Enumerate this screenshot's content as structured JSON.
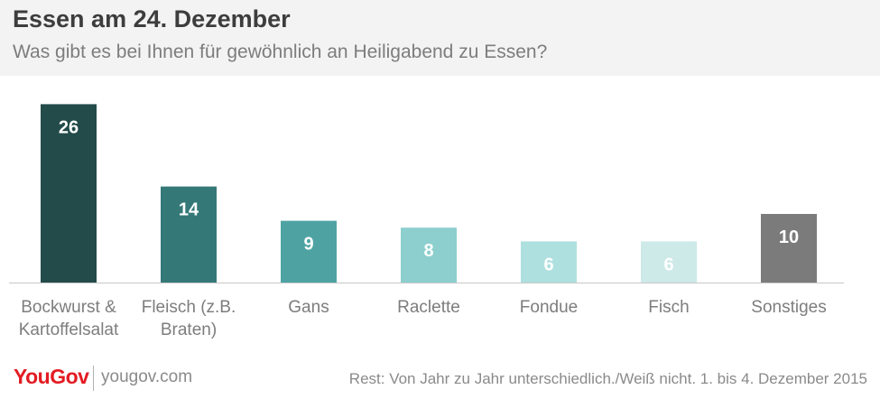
{
  "header": {
    "title": "Essen am 24. Dezember",
    "subtitle": "Was gibt es bei Ihnen für gewöhnlich an Heiligabend zu Essen?"
  },
  "chart_data": {
    "type": "bar",
    "categories": [
      [
        "Bockwurst &",
        "Kartoffelsalat"
      ],
      [
        "Fleisch (z.B.",
        "Braten)"
      ],
      [
        "Gans"
      ],
      [
        "Raclette"
      ],
      [
        "Fondue"
      ],
      [
        "Fisch"
      ],
      [
        "Sonstiges"
      ]
    ],
    "values": [
      26,
      14,
      9,
      8,
      6,
      6,
      10
    ],
    "colors": [
      "#224b4a",
      "#357878",
      "#4ea3a2",
      "#8ccfce",
      "#aee0df",
      "#cde9e8",
      "#7b7b7b"
    ],
    "label_colors": [
      "#ffffff",
      "#ffffff",
      "#ffffff",
      "#ffffff",
      "#ffffff",
      "#ffffff",
      "#ffffff"
    ],
    "title": "Essen am 24. Dezember",
    "xlabel": "",
    "ylabel": "",
    "grid": false
  },
  "footer": {
    "logo": "YouGov",
    "site": "yougov.com",
    "note": "Rest: Von Jahr zu Jahr unterschiedlich./Weiß nicht. 1. bis 4. Dezember 2015"
  }
}
